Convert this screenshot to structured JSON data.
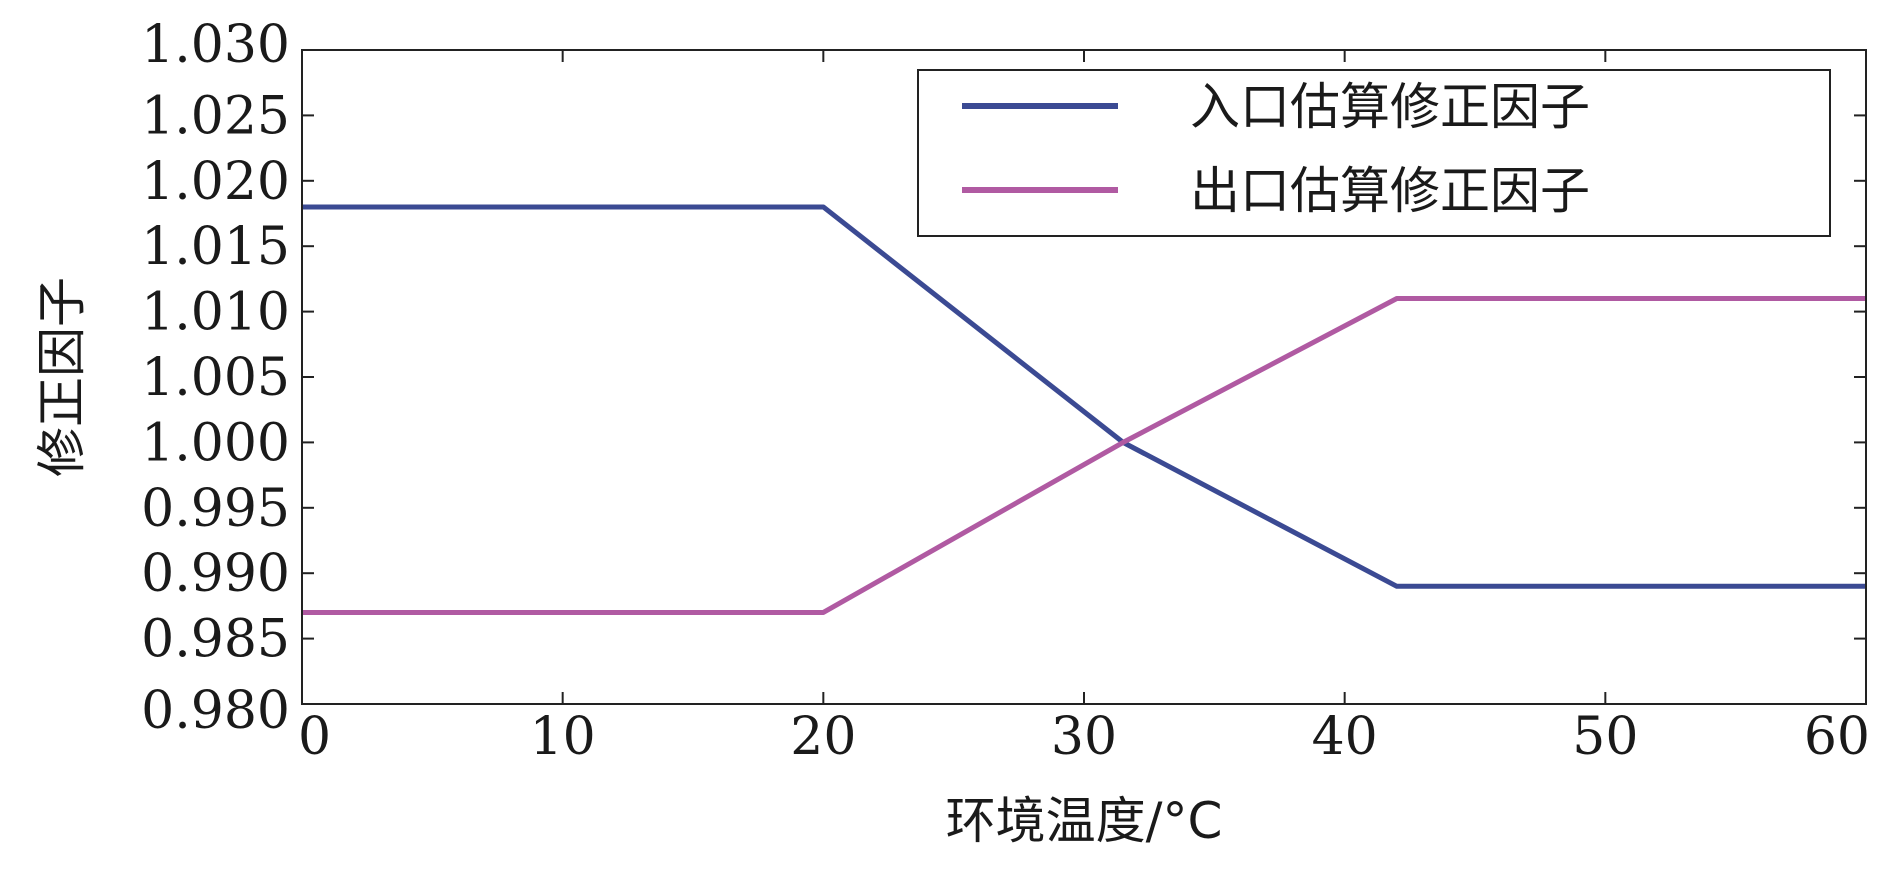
{
  "chart_data": {
    "type": "line",
    "title": "",
    "xlabel": "环境温度/°C",
    "ylabel": "修正因子",
    "xlim": [
      0,
      60
    ],
    "ylim": [
      0.98,
      1.03
    ],
    "xticks": [
      0,
      10,
      20,
      30,
      40,
      50,
      60
    ],
    "xtick_labels": [
      "0",
      "10",
      "20",
      "30",
      "40",
      "50",
      "60"
    ],
    "yticks": [
      0.98,
      0.985,
      0.99,
      0.995,
      1.0,
      1.005,
      1.01,
      1.015,
      1.02,
      1.025,
      1.03
    ],
    "ytick_labels": [
      "0.980",
      "0.985",
      "0.990",
      "0.995",
      "1.000",
      "1.005",
      "1.010",
      "1.015",
      "1.020",
      "1.025",
      "1.030"
    ],
    "grid": false,
    "legend_position": "top-right",
    "series": [
      {
        "name": "入口估算修正因子",
        "color": "#3b4a93",
        "x": [
          0,
          20,
          31.5,
          42,
          60
        ],
        "y": [
          1.018,
          1.018,
          1.0,
          0.989,
          0.989
        ]
      },
      {
        "name": "出口估算修正因子",
        "color": "#b05aa2",
        "x": [
          0,
          20,
          31.5,
          42,
          60
        ],
        "y": [
          0.987,
          0.987,
          1.0,
          1.011,
          1.011
        ]
      }
    ]
  }
}
